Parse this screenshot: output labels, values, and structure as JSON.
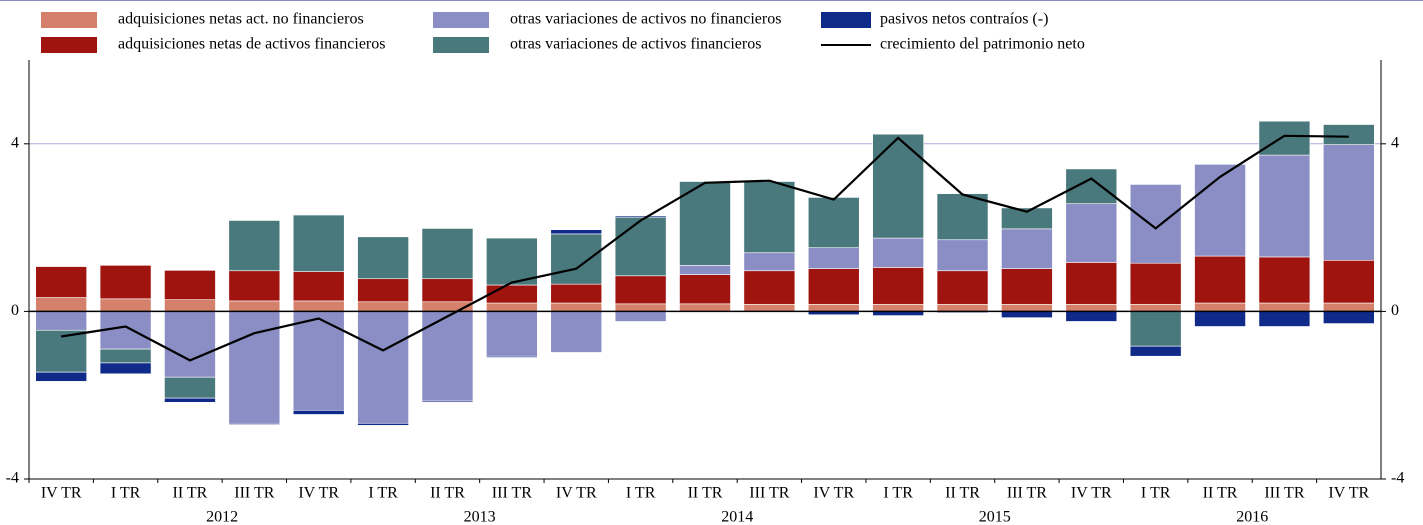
{
  "chart_data": {
    "type": "bar",
    "stacked": true,
    "categories": [
      "IV TR",
      "I TR",
      "II TR",
      "III TR",
      "IV TR",
      "I TR",
      "II TR",
      "III TR",
      "IV TR",
      "I TR",
      "II TR",
      "III TR",
      "IV TR",
      "I TR",
      "II TR",
      "III TR",
      "IV TR",
      "I TR",
      "II TR",
      "III TR",
      "IV TR"
    ],
    "year_labels": [
      "2012",
      "2013",
      "2014",
      "2015",
      "2016"
    ],
    "ylim": [
      -4,
      6
    ],
    "yticks": [
      -4,
      0,
      4
    ],
    "grid": true,
    "series": [
      {
        "name": "adquisiciones netas act. no financieros",
        "color": "#d4806a",
        "values": [
          0.33,
          0.3,
          0.28,
          0.25,
          0.25,
          0.23,
          0.23,
          0.2,
          0.2,
          0.18,
          0.18,
          0.17,
          0.17,
          0.17,
          0.17,
          0.17,
          0.17,
          0.17,
          0.2,
          0.2,
          0.2
        ]
      },
      {
        "name": "adquisiciones netas de activos financieros",
        "color": "#a0140f",
        "values": [
          0.74,
          0.8,
          0.7,
          0.72,
          0.7,
          0.55,
          0.55,
          0.43,
          0.45,
          0.67,
          0.7,
          0.8,
          0.85,
          0.88,
          0.8,
          0.85,
          1.0,
          0.98,
          1.12,
          1.1,
          1.02
        ]
      },
      {
        "name": "otras variaciones de activos no financieros",
        "color": "#8a8ec4",
        "values": [
          -0.45,
          -0.9,
          -1.57,
          -2.67,
          -2.36,
          -2.67,
          -2.14,
          -1.07,
          -0.98,
          -0.24,
          0.22,
          0.43,
          0.5,
          0.7,
          0.74,
          0.95,
          1.4,
          1.88,
          2.19,
          2.43,
          2.76
        ]
      },
      {
        "name": "otras variaciones de activos financieros",
        "color": "#4a797d",
        "values": [
          -1.0,
          -0.33,
          -0.5,
          1.2,
          1.35,
          1.0,
          1.2,
          1.12,
          1.2,
          1.4,
          2.0,
          1.7,
          1.2,
          2.48,
          1.1,
          0.5,
          0.83,
          -0.83,
          0,
          0.81,
          0.48
        ]
      },
      {
        "name": "pasivos netos contraíos (-)",
        "color": "#102a8a",
        "values": [
          -0.22,
          -0.26,
          -0.1,
          -0.03,
          -0.1,
          -0.05,
          -0.03,
          -0.03,
          0.1,
          0.03,
          0,
          0,
          -0.08,
          -0.1,
          -0.03,
          -0.15,
          -0.24,
          -0.24,
          -0.36,
          -0.36,
          -0.29
        ]
      },
      {
        "name": "crecimiento del patrimonio neto",
        "color": "#000000",
        "type": "line",
        "values": [
          -0.6,
          -0.36,
          -1.17,
          -0.52,
          -0.17,
          -0.93,
          -0.12,
          0.69,
          1.02,
          2.17,
          3.07,
          3.12,
          2.67,
          4.14,
          2.79,
          2.38,
          3.17,
          1.98,
          3.21,
          4.19,
          4.17
        ]
      }
    ]
  }
}
